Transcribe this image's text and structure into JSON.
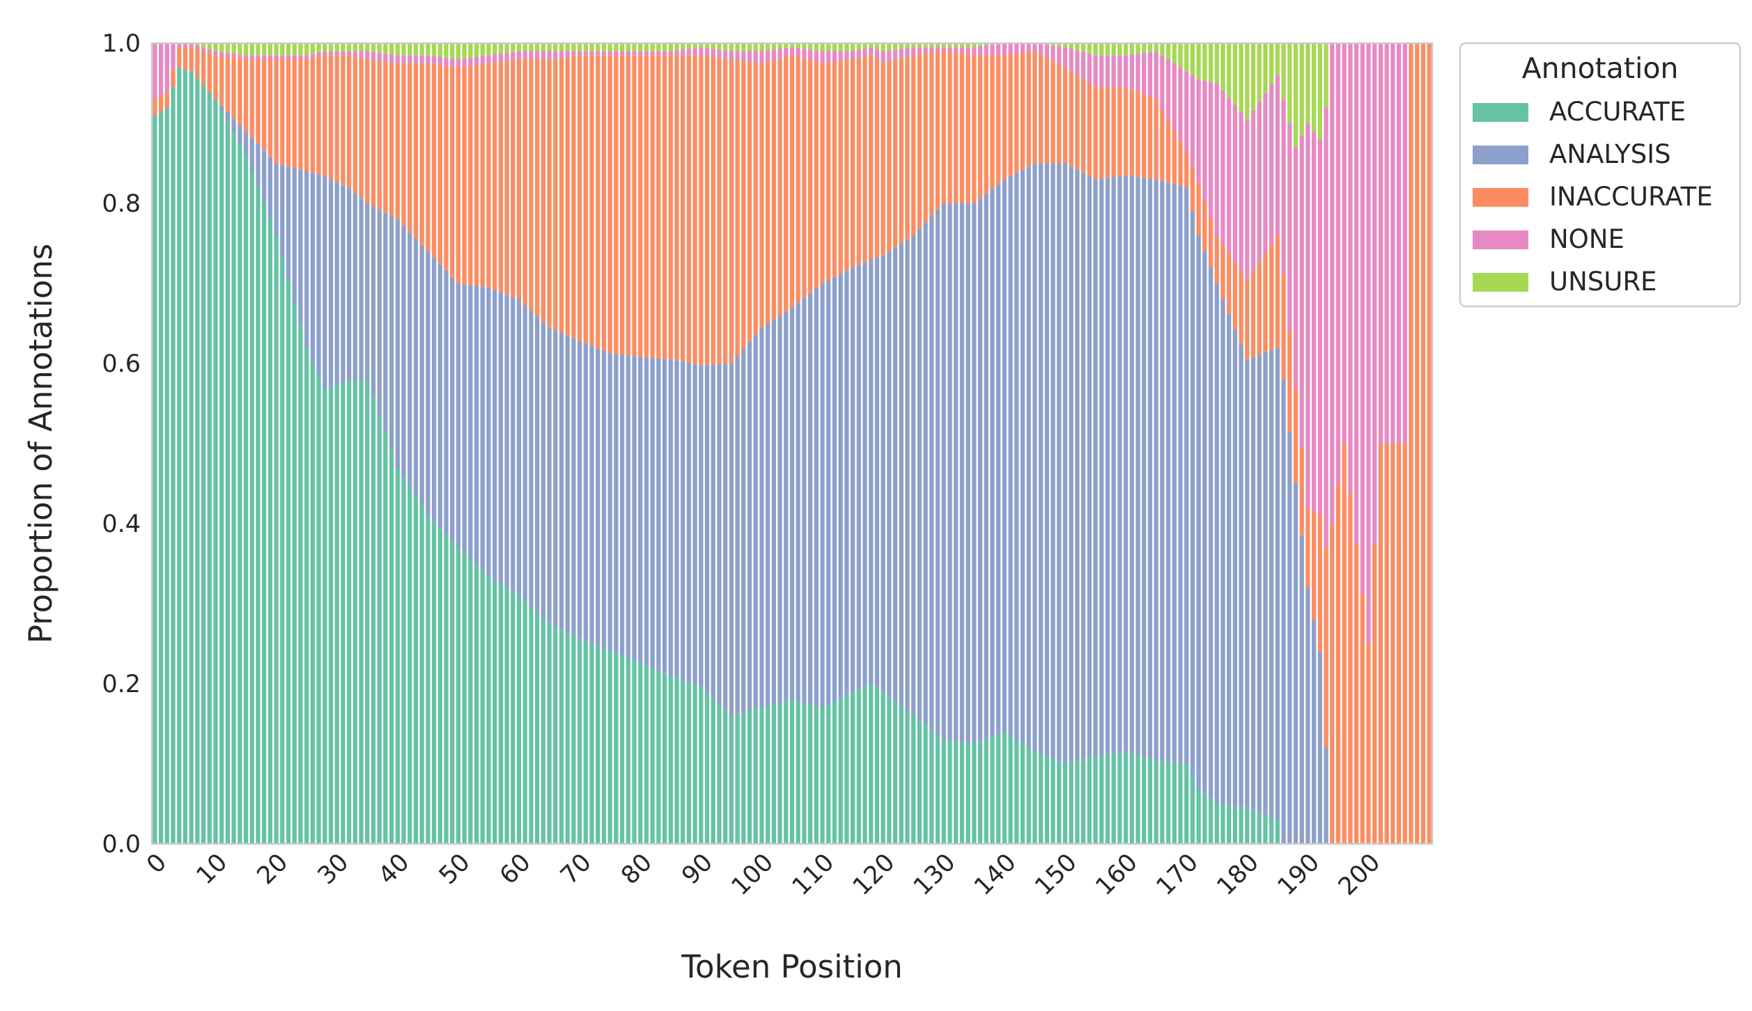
{
  "chart_data": {
    "type": "bar",
    "stacked": true,
    "normalized": true,
    "xlabel": "Token Position",
    "ylabel": "Proportion of Annotations",
    "ylim": [
      0,
      1
    ],
    "y_ticks": [
      "0.0",
      "0.2",
      "0.4",
      "0.6",
      "0.8",
      "1.0"
    ],
    "x_ticks": [
      "0",
      "10",
      "20",
      "30",
      "40",
      "50",
      "60",
      "70",
      "80",
      "90",
      "100",
      "110",
      "120",
      "130",
      "140",
      "150",
      "160",
      "170",
      "180",
      "190",
      "200"
    ],
    "x_tick_rotation_deg": -45,
    "grid": false,
    "legend": {
      "title": "Annotation",
      "placement": "outside upper right"
    },
    "series": [
      {
        "name": "ACCURATE",
        "color": "#66c2a5"
      },
      {
        "name": "ANALYSIS",
        "color": "#8da0cb"
      },
      {
        "name": "INACCURATE",
        "color": "#fc8d62"
      },
      {
        "name": "NONE",
        "color": "#e78ac3"
      },
      {
        "name": "UNSURE",
        "color": "#a6d854"
      }
    ],
    "x_start": 0,
    "category_count": 211,
    "key_points": {
      "ACCURATE": [
        [
          0,
          0.91
        ],
        [
          2,
          0.915
        ],
        [
          4,
          0.97
        ],
        [
          6,
          0.965
        ],
        [
          10,
          0.93
        ],
        [
          15,
          0.86
        ],
        [
          20,
          0.76
        ],
        [
          25,
          0.62
        ],
        [
          28,
          0.565
        ],
        [
          32,
          0.575
        ],
        [
          35,
          0.58
        ],
        [
          40,
          0.47
        ],
        [
          45,
          0.41
        ],
        [
          50,
          0.37
        ],
        [
          55,
          0.335
        ],
        [
          60,
          0.31
        ],
        [
          65,
          0.275
        ],
        [
          70,
          0.255
        ],
        [
          75,
          0.24
        ],
        [
          80,
          0.225
        ],
        [
          85,
          0.21
        ],
        [
          90,
          0.195
        ],
        [
          95,
          0.16
        ],
        [
          100,
          0.17
        ],
        [
          105,
          0.18
        ],
        [
          110,
          0.17
        ],
        [
          115,
          0.19
        ],
        [
          118,
          0.2
        ],
        [
          120,
          0.19
        ],
        [
          125,
          0.16
        ],
        [
          130,
          0.13
        ],
        [
          135,
          0.125
        ],
        [
          140,
          0.14
        ],
        [
          145,
          0.115
        ],
        [
          150,
          0.1
        ],
        [
          155,
          0.11
        ],
        [
          160,
          0.115
        ],
        [
          165,
          0.105
        ],
        [
          170,
          0.1
        ],
        [
          172,
          0.07
        ],
        [
          175,
          0.05
        ],
        [
          180,
          0.045
        ],
        [
          185,
          0.03
        ],
        [
          186,
          0.0
        ],
        [
          210,
          0.0
        ]
      ],
      "ANALYSIS": [
        [
          0,
          0.0
        ],
        [
          2,
          0.0
        ],
        [
          4,
          0.0
        ],
        [
          6,
          0.0
        ],
        [
          10,
          0.0
        ],
        [
          15,
          0.03
        ],
        [
          20,
          0.09
        ],
        [
          25,
          0.22
        ],
        [
          28,
          0.265
        ],
        [
          32,
          0.24
        ],
        [
          35,
          0.22
        ],
        [
          40,
          0.31
        ],
        [
          45,
          0.33
        ],
        [
          50,
          0.33
        ],
        [
          55,
          0.36
        ],
        [
          60,
          0.37
        ],
        [
          65,
          0.37
        ],
        [
          70,
          0.37
        ],
        [
          75,
          0.37
        ],
        [
          80,
          0.38
        ],
        [
          85,
          0.395
        ],
        [
          90,
          0.4
        ],
        [
          95,
          0.44
        ],
        [
          100,
          0.475
        ],
        [
          105,
          0.49
        ],
        [
          110,
          0.53
        ],
        [
          115,
          0.53
        ],
        [
          118,
          0.53
        ],
        [
          120,
          0.545
        ],
        [
          125,
          0.6
        ],
        [
          130,
          0.67
        ],
        [
          135,
          0.675
        ],
        [
          140,
          0.69
        ],
        [
          145,
          0.735
        ],
        [
          150,
          0.75
        ],
        [
          155,
          0.72
        ],
        [
          160,
          0.72
        ],
        [
          165,
          0.725
        ],
        [
          170,
          0.72
        ],
        [
          172,
          0.69
        ],
        [
          175,
          0.65
        ],
        [
          180,
          0.56
        ],
        [
          185,
          0.59
        ],
        [
          186,
          0.58
        ],
        [
          188,
          0.45
        ],
        [
          190,
          0.32
        ],
        [
          192,
          0.24
        ],
        [
          193,
          0.12
        ],
        [
          194,
          0.0
        ],
        [
          210,
          0.0
        ]
      ],
      "INACCURATE": [
        [
          0,
          0.02
        ],
        [
          2,
          0.02
        ],
        [
          4,
          0.025
        ],
        [
          6,
          0.03
        ],
        [
          10,
          0.055
        ],
        [
          15,
          0.09
        ],
        [
          20,
          0.13
        ],
        [
          25,
          0.14
        ],
        [
          28,
          0.15
        ],
        [
          32,
          0.165
        ],
        [
          35,
          0.18
        ],
        [
          40,
          0.195
        ],
        [
          45,
          0.235
        ],
        [
          50,
          0.27
        ],
        [
          55,
          0.28
        ],
        [
          60,
          0.3
        ],
        [
          65,
          0.335
        ],
        [
          70,
          0.355
        ],
        [
          75,
          0.37
        ],
        [
          80,
          0.375
        ],
        [
          85,
          0.38
        ],
        [
          90,
          0.385
        ],
        [
          95,
          0.38
        ],
        [
          100,
          0.33
        ],
        [
          105,
          0.315
        ],
        [
          110,
          0.275
        ],
        [
          115,
          0.26
        ],
        [
          118,
          0.255
        ],
        [
          120,
          0.24
        ],
        [
          125,
          0.225
        ],
        [
          130,
          0.19
        ],
        [
          135,
          0.185
        ],
        [
          140,
          0.155
        ],
        [
          145,
          0.14
        ],
        [
          150,
          0.12
        ],
        [
          155,
          0.115
        ],
        [
          160,
          0.11
        ],
        [
          165,
          0.1
        ],
        [
          170,
          0.045
        ],
        [
          172,
          0.065
        ],
        [
          175,
          0.06
        ],
        [
          180,
          0.1
        ],
        [
          185,
          0.14
        ],
        [
          186,
          0.13
        ],
        [
          188,
          0.12
        ],
        [
          190,
          0.1
        ],
        [
          192,
          0.17
        ],
        [
          193,
          0.25
        ],
        [
          194,
          0.4
        ],
        [
          196,
          0.5
        ],
        [
          200,
          0.25
        ],
        [
          202,
          0.5
        ],
        [
          206,
          0.5
        ],
        [
          207,
          1.0
        ],
        [
          210,
          1.0
        ]
      ],
      "NONE": [
        [
          0,
          0.07
        ],
        [
          2,
          0.06
        ],
        [
          4,
          0.005
        ],
        [
          6,
          0.005
        ],
        [
          10,
          0.005
        ],
        [
          15,
          0.005
        ],
        [
          20,
          0.005
        ],
        [
          25,
          0.005
        ],
        [
          28,
          0.005
        ],
        [
          32,
          0.005
        ],
        [
          35,
          0.01
        ],
        [
          40,
          0.01
        ],
        [
          45,
          0.01
        ],
        [
          50,
          0.01
        ],
        [
          55,
          0.01
        ],
        [
          60,
          0.01
        ],
        [
          65,
          0.01
        ],
        [
          70,
          0.005
        ],
        [
          75,
          0.005
        ],
        [
          80,
          0.005
        ],
        [
          85,
          0.005
        ],
        [
          90,
          0.01
        ],
        [
          95,
          0.01
        ],
        [
          100,
          0.015
        ],
        [
          105,
          0.01
        ],
        [
          110,
          0.015
        ],
        [
          115,
          0.01
        ],
        [
          118,
          0.01
        ],
        [
          120,
          0.015
        ],
        [
          125,
          0.01
        ],
        [
          130,
          0.005
        ],
        [
          135,
          0.01
        ],
        [
          140,
          0.015
        ],
        [
          145,
          0.01
        ],
        [
          150,
          0.025
        ],
        [
          155,
          0.04
        ],
        [
          160,
          0.04
        ],
        [
          165,
          0.06
        ],
        [
          170,
          0.1
        ],
        [
          172,
          0.13
        ],
        [
          175,
          0.19
        ],
        [
          180,
          0.2
        ],
        [
          185,
          0.2
        ],
        [
          186,
          0.22
        ],
        [
          188,
          0.3
        ],
        [
          190,
          0.48
        ],
        [
          192,
          0.47
        ],
        [
          193,
          0.55
        ],
        [
          194,
          0.6
        ],
        [
          196,
          0.5
        ],
        [
          200,
          0.75
        ],
        [
          202,
          0.5
        ],
        [
          206,
          0.5
        ],
        [
          207,
          0.0
        ],
        [
          210,
          0.0
        ]
      ],
      "UNSURE": [
        [
          0,
          0.0
        ],
        [
          2,
          0.0
        ],
        [
          4,
          0.0
        ],
        [
          6,
          0.0
        ],
        [
          10,
          0.01
        ],
        [
          15,
          0.015
        ],
        [
          20,
          0.015
        ],
        [
          25,
          0.015
        ],
        [
          28,
          0.01
        ],
        [
          32,
          0.01
        ],
        [
          35,
          0.01
        ],
        [
          40,
          0.015
        ],
        [
          45,
          0.015
        ],
        [
          50,
          0.02
        ],
        [
          55,
          0.015
        ],
        [
          60,
          0.01
        ],
        [
          65,
          0.01
        ],
        [
          70,
          0.01
        ],
        [
          75,
          0.01
        ],
        [
          80,
          0.01
        ],
        [
          85,
          0.01
        ],
        [
          90,
          0.005
        ],
        [
          95,
          0.01
        ],
        [
          100,
          0.01
        ],
        [
          105,
          0.005
        ],
        [
          110,
          0.01
        ],
        [
          115,
          0.01
        ],
        [
          118,
          0.005
        ],
        [
          120,
          0.01
        ],
        [
          125,
          0.005
        ],
        [
          130,
          0.005
        ],
        [
          135,
          0.005
        ],
        [
          140,
          0.0
        ],
        [
          145,
          0.0
        ],
        [
          150,
          0.005
        ],
        [
          155,
          0.015
        ],
        [
          160,
          0.015
        ],
        [
          165,
          0.01
        ],
        [
          170,
          0.035
        ],
        [
          172,
          0.045
        ],
        [
          175,
          0.05
        ],
        [
          180,
          0.095
        ],
        [
          185,
          0.04
        ],
        [
          186,
          0.07
        ],
        [
          188,
          0.13
        ],
        [
          190,
          0.1
        ],
        [
          192,
          0.12
        ],
        [
          193,
          0.08
        ],
        [
          194,
          0.0
        ],
        [
          210,
          0.0
        ]
      ]
    }
  }
}
